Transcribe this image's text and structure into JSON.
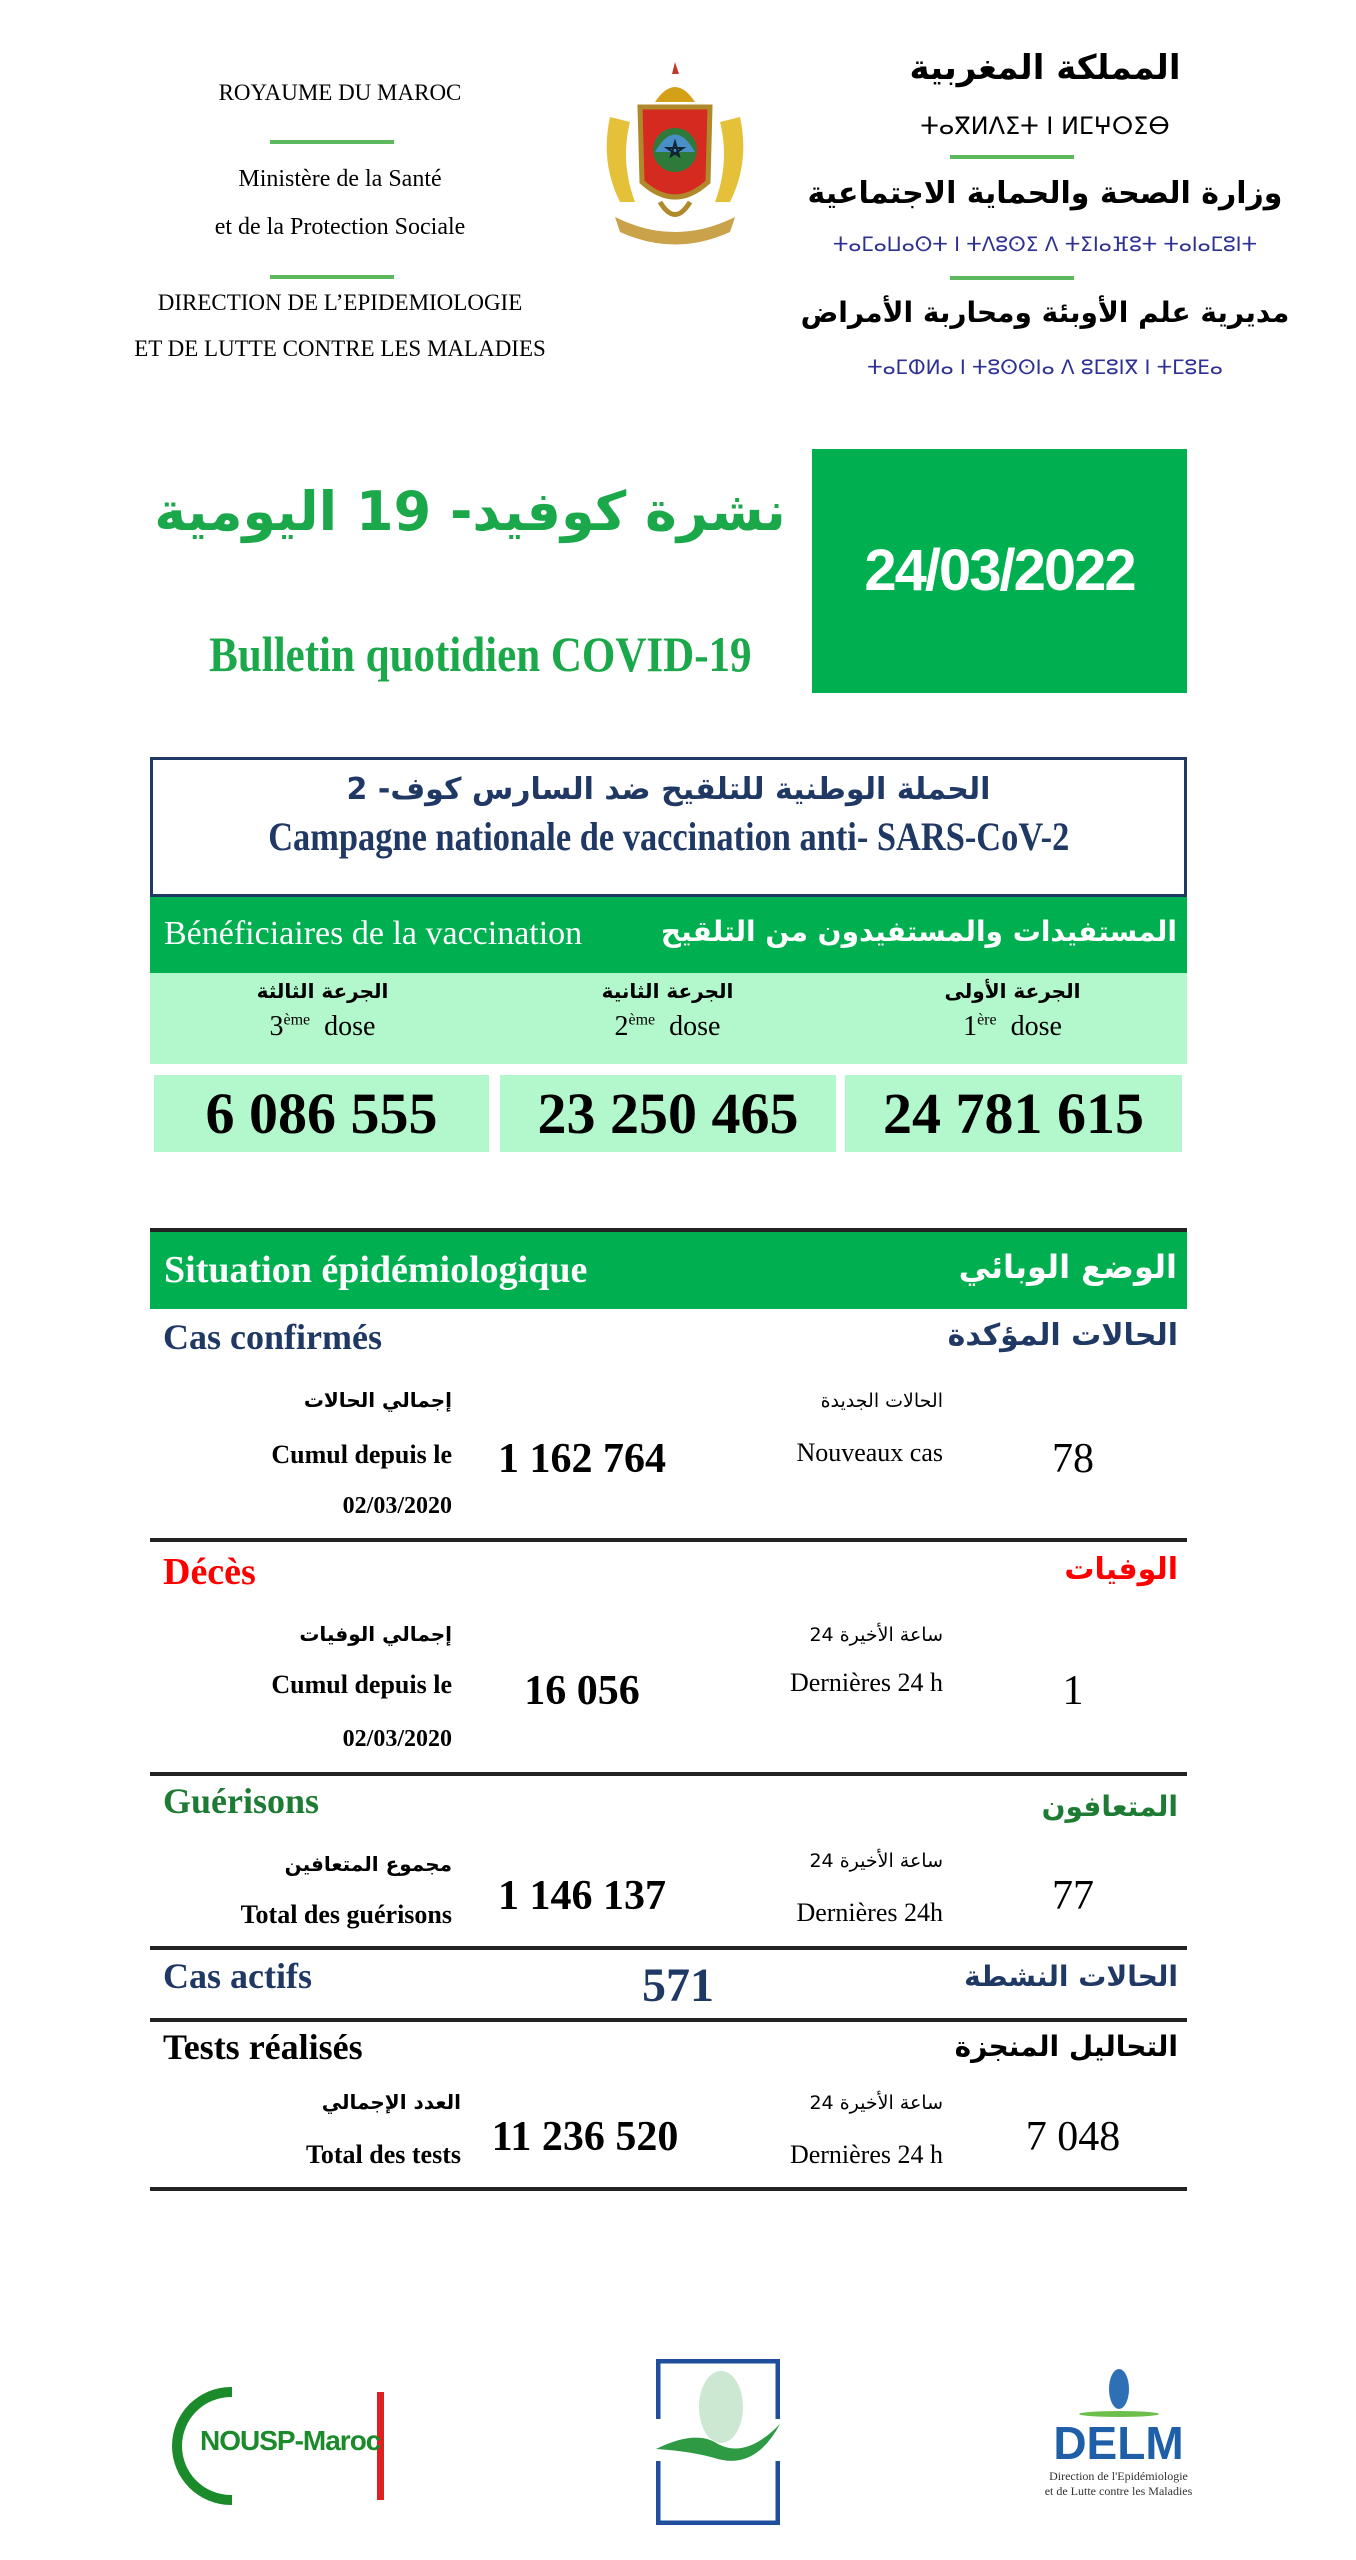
{
  "header": {
    "fr_kingdom": "ROYAUME DU MAROC",
    "fr_ministry_1": "Ministère de la Santé",
    "fr_ministry_2": "et de la Protection Sociale",
    "fr_direction_1": "DIRECTION DE L’EPIDEMIOLOGIE",
    "fr_direction_2": "ET DE LUTTE CONTRE LES MALADIES",
    "ar_kingdom": "المملكة المغربية",
    "tif_kingdom": "ⵜⴰⴳⵍⴷⵉⵜ ⵏ ⵍⵎⵖⵔⵉⴱ",
    "ar_ministry": "وزارة الصحة والحماية الاجتماعية",
    "tif_ministry": "ⵜⴰⵎⴰⵡⴰⵙⵜ ⵏ ⵜⴷⵓⵙⵉ ⴷ ⵜⵉⵏⴰⴼⵓⵜ ⵜⴰⵏⴰⵎⵓⵏⵜ",
    "ar_direction": "مديرية علم الأوبئة ومحاربة الأمراض",
    "tif_direction": "ⵜⴰⵎⵀⵍⴰ ⵏ ⵜⵓⵙⵙⵏⴰ ⴷ ⵓⵎⵓⵏⴳ ⵏ ⵜⵎⵓⴹⴰ",
    "emblem_icon": "morocco-coat-of-arms"
  },
  "title": {
    "ar": "نشرة كوفيد- 19 اليومية",
    "fr": "Bulletin quotidien COVID-19",
    "date": "24/03/2022"
  },
  "vaccination": {
    "title_ar": "الحملة الوطنية للتلقيح ضد السارس كوف- 2",
    "title_fr": "Campagne nationale de vaccination anti- SARS-CoV-2",
    "band_fr": "Bénéficiaires de la vaccination",
    "band_ar": "المستفيدات والمستفيدون من التلقيح",
    "doses": [
      {
        "ar": "الجرعة الثالثة",
        "num": "3",
        "sup": "ème",
        "label": "dose",
        "value": "6 086 555"
      },
      {
        "ar": "الجرعة الثانية",
        "num": "2",
        "sup": "ème",
        "label": "dose",
        "value": "23 250 465"
      },
      {
        "ar": "الجرعة الأولى",
        "num": "1",
        "sup": "ère",
        "label": "dose",
        "value": "24 781 615"
      }
    ]
  },
  "situation": {
    "band_fr": "Situation épidémiologique",
    "band_ar": "الوضع الوبائي",
    "confirmed": {
      "fr": "Cas confirmés",
      "ar": "الحالات المؤكدة",
      "total_ar": "إجمالي الحالات",
      "total_fr": "Cumul depuis le",
      "since": "02/03/2020",
      "total": "1 162 764",
      "new_ar": "الحالات الجديدة",
      "new_fr": "Nouveaux cas",
      "new": "78"
    },
    "deaths": {
      "fr": "Décès",
      "ar": "الوفيات",
      "total_ar": "إجمالي الوفيات",
      "total_fr": "Cumul depuis le",
      "since": "02/03/2020",
      "total": "16 056",
      "new_ar": "24 ساعة الأخيرة",
      "new_fr": "Dernières 24 h",
      "new": "1"
    },
    "recoveries": {
      "fr": "Guérisons",
      "ar": "المتعافون",
      "total_ar": "مجموع المتعافين",
      "total_fr": "Total des guérisons",
      "total": "1 146 137",
      "new_ar": "24 ساعة الأخيرة",
      "new_fr": "Dernières 24h",
      "new": "77"
    },
    "active": {
      "fr": "Cas actifs",
      "ar": "الحالات النشطة",
      "value": "571"
    },
    "tests": {
      "fr": "Tests réalisés",
      "ar": "التحاليل المنجزة",
      "total_ar": "العدد الإجمالي",
      "total_fr": "Total des tests",
      "total": "11 236 520",
      "new_ar": "24 ساعة الأخيرة",
      "new_fr": "Dernières 24 h",
      "new": "7 048"
    }
  },
  "footer": {
    "nousp": "NOUSP-Maroc",
    "delm": "DELM",
    "delm_sub_1": "Direction de l'Epidémiologie",
    "delm_sub_2": "et de Lutte contre les Maladies"
  },
  "colors": {
    "green": "#00b050",
    "light_green": "#b3f7cd",
    "navy": "#1f3864",
    "red": "#ff0000",
    "dark_green": "#1e7b34"
  }
}
